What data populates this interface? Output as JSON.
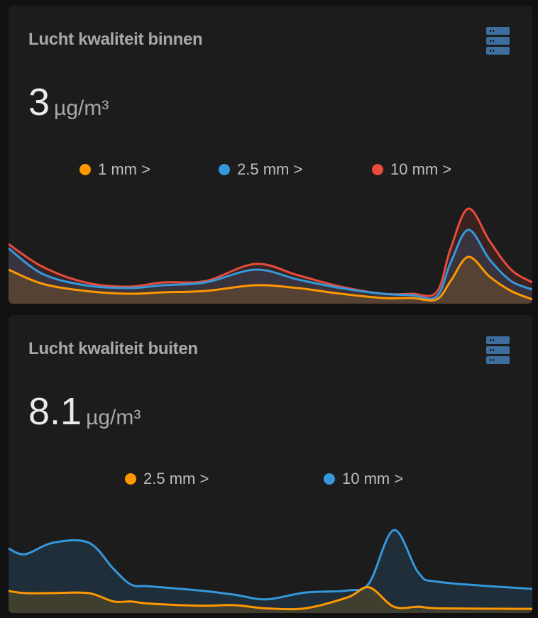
{
  "cards": [
    {
      "title": "Lucht kwaliteit binnen",
      "icon": "server-icon",
      "state": "3",
      "unit": "µg/m³",
      "legend": [
        "1 mm >",
        "2.5 mm >",
        "10 mm >"
      ],
      "colors": [
        "#ff9800",
        "#3498db",
        "#e74c3c"
      ]
    },
    {
      "title": "Lucht kwaliteit buiten",
      "icon": "server-icon",
      "state": "8.1",
      "unit": "µg/m³",
      "legend": [
        "2.5 mm >",
        "10 mm >"
      ],
      "colors": [
        "#ff9800",
        "#3498db"
      ]
    }
  ],
  "chart_data": [
    {
      "type": "area",
      "series": [
        {
          "name": "1 mm >",
          "color": "#ff9800",
          "values": [
            24,
            14,
            9,
            7,
            8,
            9,
            13,
            11,
            7,
            4,
            4,
            3,
            16,
            33,
            19,
            9,
            3
          ]
        },
        {
          "name": "2.5 mm >",
          "color": "#3498db",
          "values": [
            39,
            21,
            13,
            11,
            13,
            15,
            24,
            17,
            11,
            7,
            6,
            5,
            29,
            52,
            31,
            16,
            10
          ]
        },
        {
          "name": "10 mm >",
          "color": "#e74c3c",
          "values": [
            42,
            26,
            15,
            12,
            15,
            16,
            28,
            20,
            12,
            7,
            7,
            8,
            39,
            67,
            44,
            24,
            15
          ]
        }
      ]
    },
    {
      "type": "area",
      "series": [
        {
          "name": "2.5 mm >",
          "color": "#ff9800",
          "values": [
            42,
            38,
            38,
            38,
            22,
            22,
            18,
            14,
            15,
            9,
            9,
            30,
            49,
            12,
            12,
            9,
            8
          ]
        },
        {
          "name": "10 mm >",
          "color": "#3498db",
          "values": [
            123,
            112,
            134,
            134,
            84,
            54,
            51,
            43,
            35,
            26,
            39,
            43,
            57,
            158,
            76,
            59,
            46
          ]
        }
      ]
    }
  ]
}
